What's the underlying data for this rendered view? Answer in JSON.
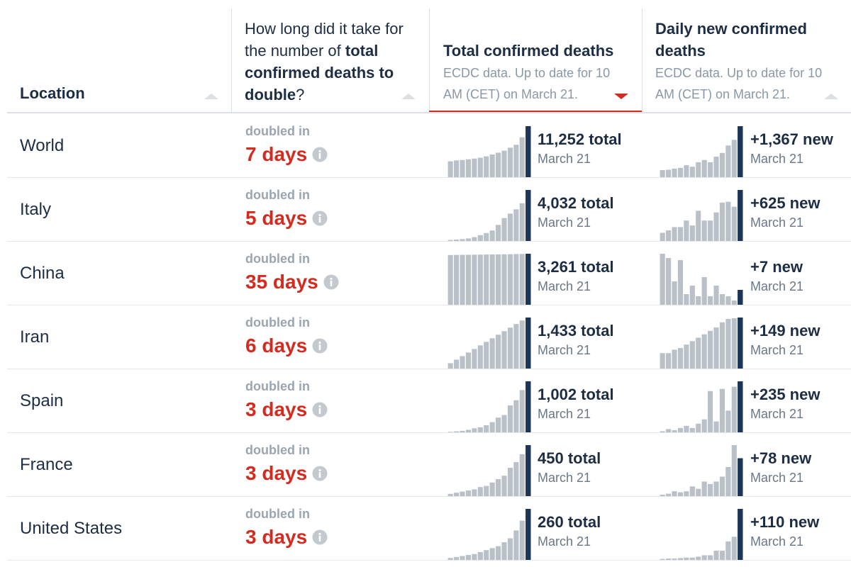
{
  "header": {
    "location": "Location",
    "question": [
      "How long did it take for the number of ",
      "total confirmed deaths to double",
      "?"
    ],
    "total": {
      "title": "Total confirmed deaths",
      "note": "ECDC data. Up to date for 10 AM (CET) on March 21."
    },
    "daily": {
      "title": "Daily new confirmed deaths",
      "note": "ECDC data. Up to date for 10 AM (CET) on March 21."
    }
  },
  "colors": {
    "bar": "#b9c0c8",
    "latest": "#1d3557",
    "days": "#d42b21"
  },
  "rows": [
    {
      "location": "World",
      "doubled_label": "doubled in",
      "doubled": "7 days",
      "total": {
        "values": [
          3500,
          3700,
          3800,
          3950,
          4100,
          4300,
          4600,
          5000,
          5400,
          5850,
          6500,
          7150,
          8800,
          11252
        ],
        "label": "11,252 total",
        "date": "March 21"
      },
      "daily": {
        "values": [
          190,
          200,
          230,
          250,
          320,
          280,
          400,
          460,
          400,
          550,
          650,
          850,
          1000,
          1367
        ],
        "label": "+1,367 new",
        "date": "March 21"
      }
    },
    {
      "location": "Italy",
      "doubled_label": "doubled in",
      "doubled": "5 days",
      "total": {
        "values": [
          80,
          110,
          150,
          200,
          300,
          460,
          630,
          830,
          1270,
          1810,
          2160,
          2500,
          2980,
          4032
        ],
        "label": "4,032 total",
        "date": "March 21"
      },
      "daily": {
        "values": [
          100,
          130,
          170,
          170,
          250,
          190,
          370,
          250,
          250,
          350,
          470,
          480,
          420,
          625
        ],
        "label": "+625 new",
        "date": "March 21"
      }
    },
    {
      "location": "China",
      "doubled_label": "doubled in",
      "doubled": "35 days",
      "total": {
        "values": [
          3180,
          3185,
          3190,
          3195,
          3200,
          3205,
          3210,
          3215,
          3220,
          3225,
          3230,
          3240,
          3250,
          3261
        ],
        "label": "3,261 total",
        "date": "March 21"
      },
      "daily": {
        "values": [
          24,
          22,
          11,
          21,
          5,
          9,
          4,
          13,
          4,
          9,
          5,
          4,
          2,
          7
        ],
        "label": "+7 new",
        "date": "March 21"
      }
    },
    {
      "location": "Iran",
      "doubled_label": "doubled in",
      "doubled": "6 days",
      "total": {
        "values": [
          150,
          250,
          350,
          450,
          550,
          650,
          750,
          850,
          950,
          1050,
          1150,
          1250,
          1350,
          1433
        ],
        "label": "1,433 total",
        "date": "March 21"
      },
      "daily": {
        "values": [
          45,
          45,
          55,
          60,
          70,
          80,
          90,
          100,
          110,
          120,
          135,
          145,
          147,
          149
        ],
        "label": "+149 new",
        "date": "March 21"
      }
    },
    {
      "location": "Spain",
      "doubled_label": "doubled in",
      "doubled": "3 days",
      "total": {
        "values": [
          10,
          20,
          30,
          50,
          80,
          100,
          140,
          200,
          290,
          340,
          530,
          630,
          830,
          1002
        ],
        "label": "1,002 total",
        "date": "March 21"
      },
      "daily": {
        "values": [
          5,
          15,
          10,
          20,
          30,
          20,
          40,
          60,
          190,
          50,
          200,
          100,
          210,
          235
        ],
        "label": "+235 new",
        "date": "March 21"
      }
    },
    {
      "location": "France",
      "doubled_label": "doubled in",
      "doubled": "3 days",
      "total": {
        "values": [
          20,
          30,
          40,
          50,
          60,
          80,
          90,
          120,
          150,
          180,
          250,
          300,
          370,
          450
        ],
        "label": "450 total",
        "date": "March 21"
      },
      "daily": {
        "values": [
          3,
          5,
          10,
          8,
          10,
          20,
          15,
          30,
          25,
          30,
          40,
          60,
          105,
          78
        ],
        "label": "+78 new",
        "date": "March 21"
      }
    },
    {
      "location": "United States",
      "doubled_label": "doubled in",
      "doubled": "3 days",
      "total": {
        "values": [
          10,
          15,
          20,
          25,
          30,
          40,
          50,
          60,
          70,
          90,
          110,
          150,
          200,
          260
        ],
        "label": "260 total",
        "date": "March 21"
      },
      "daily": {
        "values": [
          2,
          3,
          3,
          4,
          5,
          5,
          7,
          10,
          10,
          20,
          20,
          40,
          50,
          110
        ],
        "label": "+110 new",
        "date": "March 21"
      }
    }
  ]
}
